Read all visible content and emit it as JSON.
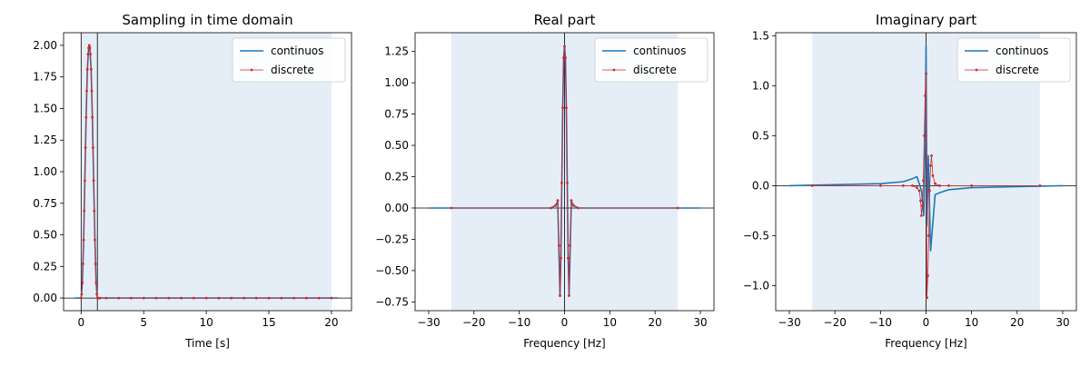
{
  "colors": {
    "continuous": "#1f77b4",
    "discrete": "#d62728",
    "shade": "#e5eef7",
    "axis": "#000000",
    "legend_border": "#cccccc"
  },
  "chart_data": [
    {
      "type": "line",
      "title": "Sampling in time domain",
      "xlabel": "Time [s]",
      "ylabel": "",
      "xlim": [
        -1.4,
        21.6
      ],
      "ylim": [
        -0.1,
        2.1
      ],
      "xticks": [
        0,
        5,
        10,
        15,
        20
      ],
      "xtick_labels": [
        "0",
        "5",
        "10",
        "15",
        "20"
      ],
      "yticks": [
        0,
        0.25,
        0.5,
        0.75,
        1.0,
        1.25,
        1.5,
        1.75,
        2.0
      ],
      "ytick_labels": [
        "0.00",
        "0.25",
        "0.50",
        "0.75",
        "1.00",
        "1.25",
        "1.50",
        "1.75",
        "2.00"
      ],
      "shaded_region": [
        0,
        20
      ],
      "vlines": [
        0,
        1.3
      ],
      "hline": 0,
      "legend": {
        "location": "top-right",
        "entries": [
          "continuos",
          "discrete"
        ]
      },
      "series": [
        {
          "name": "continuos",
          "x": [
            -0.5,
            0,
            0.1,
            0.2,
            0.3,
            0.4,
            0.5,
            0.6,
            0.65,
            0.7,
            0.8,
            0.9,
            1.0,
            1.1,
            1.2,
            1.3,
            1.5,
            20.5
          ],
          "y": [
            0,
            0,
            0.12,
            0.46,
            0.93,
            1.43,
            1.81,
            1.98,
            2.0,
            1.98,
            1.81,
            1.43,
            0.93,
            0.46,
            0.12,
            0,
            0,
            0
          ]
        },
        {
          "name": "discrete",
          "x": [
            0,
            0.05,
            0.1,
            0.15,
            0.2,
            0.25,
            0.3,
            0.35,
            0.4,
            0.45,
            0.5,
            0.55,
            0.6,
            0.65,
            0.7,
            0.75,
            0.8,
            0.85,
            0.9,
            0.95,
            1.0,
            1.05,
            1.1,
            1.15,
            1.2,
            1.25,
            1.3,
            1.4,
            1.5,
            2,
            3,
            4,
            5,
            6,
            7,
            8,
            9,
            10,
            11,
            12,
            13,
            14,
            15,
            16,
            17,
            18,
            19,
            20
          ],
          "y": [
            0,
            0.03,
            0.12,
            0.27,
            0.46,
            0.69,
            0.93,
            1.19,
            1.43,
            1.64,
            1.81,
            1.93,
            1.98,
            2.0,
            1.98,
            1.93,
            1.81,
            1.64,
            1.43,
            1.19,
            0.93,
            0.69,
            0.46,
            0.27,
            0.12,
            0.03,
            0,
            0,
            0,
            0,
            0,
            0,
            0,
            0,
            0,
            0,
            0,
            0,
            0,
            0,
            0,
            0,
            0,
            0,
            0,
            0,
            0,
            0
          ]
        }
      ]
    },
    {
      "type": "line",
      "title": "Real part",
      "xlabel": "Frequency [Hz]",
      "ylabel": "",
      "xlim": [
        -33,
        33
      ],
      "ylim": [
        -0.82,
        1.4
      ],
      "xticks": [
        -30,
        -20,
        -10,
        0,
        10,
        20,
        30
      ],
      "xtick_labels": [
        "−30",
        "−20",
        "−10",
        "0",
        "10",
        "20",
        "30"
      ],
      "yticks": [
        -0.75,
        -0.5,
        -0.25,
        0,
        0.25,
        0.5,
        0.75,
        1.0,
        1.25
      ],
      "ytick_labels": [
        "−0.75",
        "−0.50",
        "−0.25",
        "0.00",
        "0.25",
        "0.50",
        "0.75",
        "1.00",
        "1.25"
      ],
      "shaded_region": [
        -25,
        25
      ],
      "vlines": [
        0
      ],
      "hline": 0,
      "legend": {
        "location": "top-right",
        "entries": [
          "continuos",
          "discrete"
        ]
      },
      "series": [
        {
          "name": "continuos",
          "x": [
            -30,
            -3,
            -2,
            -1.5,
            -1,
            -0.8,
            -0.6,
            -0.4,
            -0.2,
            0,
            0.2,
            0.4,
            0.6,
            0.8,
            1,
            1.5,
            2,
            3,
            30
          ],
          "y": [
            0,
            0,
            0.02,
            0.05,
            -0.7,
            -0.4,
            0.2,
            0.8,
            1.2,
            1.3,
            1.2,
            0.8,
            0.2,
            -0.4,
            -0.7,
            0.05,
            0.02,
            0,
            0
          ]
        },
        {
          "name": "discrete",
          "x": [
            -25,
            -3,
            -2,
            -1.5,
            -1.2,
            -1,
            -0.8,
            -0.6,
            -0.4,
            -0.2,
            0,
            0.2,
            0.4,
            0.6,
            0.8,
            1,
            1.2,
            1.5,
            2,
            3,
            25
          ],
          "y": [
            0,
            0,
            0.02,
            0.06,
            -0.3,
            -0.7,
            -0.4,
            0.2,
            0.8,
            1.2,
            1.29,
            1.2,
            0.8,
            0.2,
            -0.4,
            -0.7,
            -0.3,
            0.06,
            0.02,
            0,
            0
          ]
        }
      ]
    },
    {
      "type": "line",
      "title": "Imaginary part",
      "xlabel": "Frequency [Hz]",
      "ylabel": "",
      "xlim": [
        -33,
        33
      ],
      "ylim": [
        -1.25,
        1.53
      ],
      "xticks": [
        -30,
        -20,
        -10,
        0,
        10,
        20,
        30
      ],
      "xtick_labels": [
        "−30",
        "−20",
        "−10",
        "0",
        "10",
        "20",
        "30"
      ],
      "yticks": [
        -1.0,
        -0.5,
        0,
        0.5,
        1.0,
        1.5
      ],
      "ytick_labels": [
        "−1.0",
        "−0.5",
        "0.0",
        "0.5",
        "1.0",
        "1.5"
      ],
      "shaded_region": [
        -25,
        25
      ],
      "vlines": [
        0
      ],
      "hline": 0,
      "legend": {
        "location": "top-right",
        "entries": [
          "continuos",
          "discrete"
        ]
      },
      "series": [
        {
          "name": "continuos",
          "x": [
            -30,
            -20,
            -10,
            -5,
            -3,
            -2,
            -1,
            -0.5,
            -0.2,
            0,
            0.2,
            0.5,
            1,
            2,
            3,
            5,
            10,
            20,
            30
          ],
          "y": [
            0,
            0.01,
            0.02,
            0.04,
            0.07,
            0.09,
            -0.05,
            -0.3,
            0.4,
            1.4,
            -0.4,
            0.3,
            -0.65,
            -0.09,
            -0.07,
            -0.04,
            -0.02,
            -0.01,
            0
          ]
        },
        {
          "name": "discrete",
          "x": [
            -25,
            -10,
            -5,
            -3,
            -2,
            -1.5,
            -1.2,
            -1,
            -0.8,
            -0.6,
            -0.4,
            -0.2,
            0,
            0.2,
            0.4,
            0.6,
            0.8,
            1,
            1.2,
            1.5,
            2,
            3,
            5,
            10,
            25
          ],
          "y": [
            0,
            0,
            0,
            0,
            -0.02,
            -0.05,
            -0.15,
            -0.3,
            -0.2,
            0.05,
            0.5,
            0.9,
            1.12,
            -1.12,
            -0.9,
            -0.5,
            -0.05,
            0.2,
            0.3,
            0.1,
            0.02,
            0,
            0,
            0,
            0
          ]
        }
      ]
    }
  ]
}
